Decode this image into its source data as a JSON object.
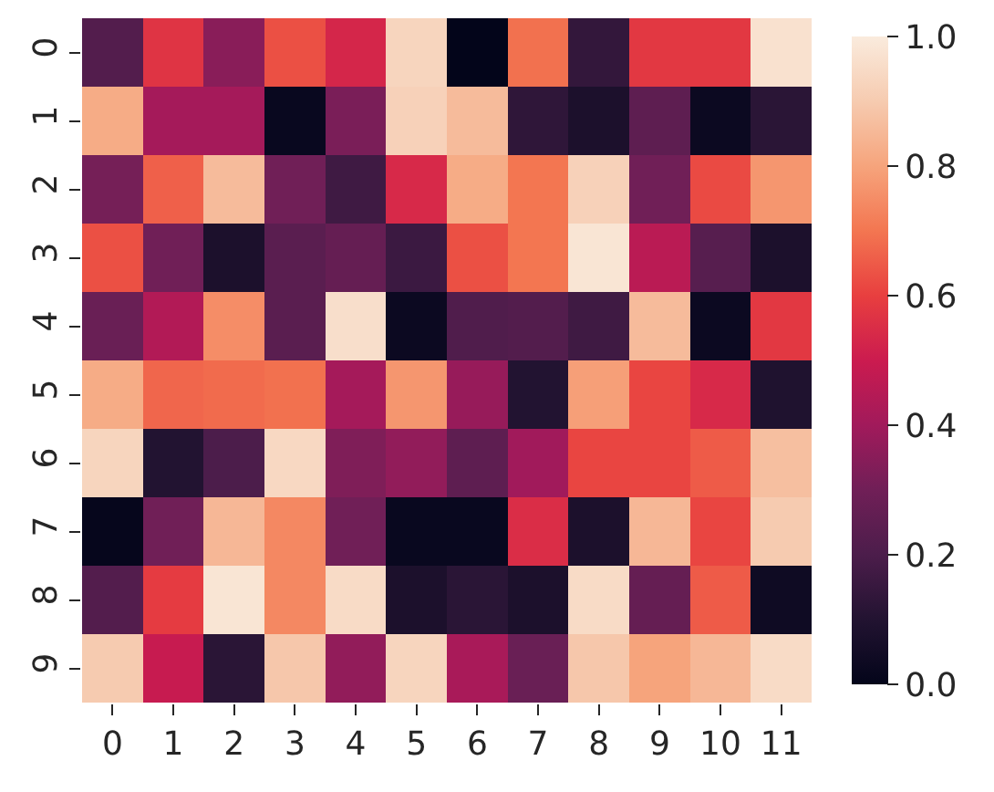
{
  "chart_data": {
    "type": "heatmap",
    "categories": [
      "0",
      "1",
      "2",
      "3",
      "4",
      "5",
      "6",
      "7",
      "8",
      "9",
      "10",
      "11"
    ],
    "y_categories": [
      "0",
      "1",
      "2",
      "3",
      "4",
      "5",
      "6",
      "7",
      "8",
      "9"
    ],
    "cells": [
      [
        0.22,
        0.57,
        0.35,
        0.63,
        0.53,
        0.93,
        0.0,
        0.69,
        0.14,
        0.58,
        0.58,
        0.97
      ],
      [
        0.82,
        0.41,
        0.41,
        0.02,
        0.32,
        0.92,
        0.86,
        0.13,
        0.08,
        0.25,
        0.03,
        0.12
      ],
      [
        0.31,
        0.66,
        0.86,
        0.3,
        0.17,
        0.54,
        0.82,
        0.7,
        0.92,
        0.3,
        0.62,
        0.77
      ],
      [
        0.63,
        0.3,
        0.08,
        0.24,
        0.27,
        0.16,
        0.63,
        0.7,
        0.98,
        0.46,
        0.23,
        0.08
      ],
      [
        0.28,
        0.44,
        0.75,
        0.24,
        0.96,
        0.03,
        0.21,
        0.22,
        0.17,
        0.86,
        0.03,
        0.58
      ],
      [
        0.82,
        0.67,
        0.68,
        0.69,
        0.41,
        0.77,
        0.38,
        0.1,
        0.79,
        0.61,
        0.54,
        0.09
      ],
      [
        0.93,
        0.1,
        0.2,
        0.94,
        0.33,
        0.37,
        0.25,
        0.4,
        0.61,
        0.61,
        0.65,
        0.87
      ],
      [
        0.01,
        0.3,
        0.85,
        0.74,
        0.3,
        0.02,
        0.02,
        0.55,
        0.08,
        0.85,
        0.61,
        0.9
      ],
      [
        0.22,
        0.59,
        0.98,
        0.74,
        0.95,
        0.08,
        0.12,
        0.08,
        0.95,
        0.27,
        0.65,
        0.04
      ],
      [
        0.9,
        0.49,
        0.12,
        0.89,
        0.37,
        0.93,
        0.42,
        0.28,
        0.89,
        0.8,
        0.85,
        0.95
      ]
    ],
    "clim": [
      0,
      1
    ],
    "cticks": [
      {
        "value": 0,
        "label": "0.0"
      },
      {
        "value": 0.2,
        "label": "0.2"
      },
      {
        "value": 0.4,
        "label": "0.4"
      },
      {
        "value": 0.6,
        "label": "0.6"
      },
      {
        "value": 0.8,
        "label": "0.8"
      },
      {
        "value": 1,
        "label": "1.0"
      }
    ]
  }
}
